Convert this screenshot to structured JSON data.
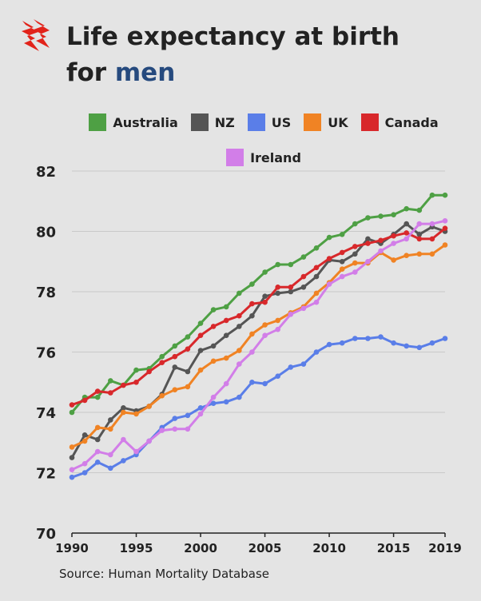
{
  "header": {
    "title_prefix": "Life expectancy at birth",
    "title_for": "for ",
    "title_accent": "men",
    "logo_icon": "sbs-logo-icon"
  },
  "source": "Source: Human Mortality Database",
  "colors": {
    "Australia": "#4ea044",
    "NZ": "#555555",
    "US": "#5a7ee8",
    "UK": "#f08324",
    "Canada": "#d8282b",
    "Ireland": "#d27ee8",
    "accent": "#264a7e",
    "logo": "#e2231a"
  },
  "chart_data": {
    "type": "line",
    "title": "Life expectancy at birth for men",
    "xlabel": "",
    "ylabel": "",
    "xlim": [
      1990,
      2019
    ],
    "ylim": [
      70,
      82
    ],
    "yticks": [
      70,
      72,
      74,
      76,
      78,
      80,
      82
    ],
    "xticks": [
      1990,
      1995,
      2000,
      2005,
      2010,
      2015,
      2019
    ],
    "grid": true,
    "legend": "top",
    "x": [
      1990,
      1991,
      1992,
      1993,
      1994,
      1995,
      1996,
      1997,
      1998,
      1999,
      2000,
      2001,
      2002,
      2003,
      2004,
      2005,
      2006,
      2007,
      2008,
      2009,
      2010,
      2011,
      2012,
      2013,
      2014,
      2015,
      2016,
      2017,
      2018,
      2019
    ],
    "series": [
      {
        "name": "Australia",
        "values": [
          74.0,
          74.5,
          74.5,
          75.05,
          74.9,
          75.4,
          75.45,
          75.85,
          76.2,
          76.5,
          76.95,
          77.4,
          77.5,
          77.95,
          78.25,
          78.65,
          78.9,
          78.9,
          79.15,
          79.45,
          79.8,
          79.9,
          80.25,
          80.45,
          80.5,
          80.55,
          80.75,
          80.7,
          81.2,
          81.2
        ]
      },
      {
        "name": "NZ",
        "values": [
          72.5,
          73.25,
          73.1,
          73.75,
          74.15,
          74.05,
          74.2,
          74.6,
          75.5,
          75.35,
          76.05,
          76.2,
          76.55,
          76.85,
          77.2,
          77.85,
          77.95,
          78.0,
          78.15,
          78.5,
          79.05,
          79.0,
          79.25,
          79.75,
          79.6,
          79.9,
          80.25,
          79.9,
          80.15,
          80.0
        ]
      },
      {
        "name": "US",
        "values": [
          71.85,
          72.0,
          72.35,
          72.15,
          72.4,
          72.6,
          73.05,
          73.5,
          73.8,
          73.9,
          74.15,
          74.3,
          74.35,
          74.5,
          75.0,
          74.95,
          75.2,
          75.5,
          75.6,
          76.0,
          76.25,
          76.3,
          76.45,
          76.45,
          76.5,
          76.3,
          76.2,
          76.15,
          76.3,
          76.45
        ]
      },
      {
        "name": "UK",
        "values": [
          72.85,
          73.05,
          73.5,
          73.45,
          74.0,
          73.95,
          74.2,
          74.55,
          74.75,
          74.85,
          75.4,
          75.7,
          75.8,
          76.05,
          76.6,
          76.9,
          77.05,
          77.3,
          77.5,
          77.95,
          78.3,
          78.75,
          78.95,
          78.95,
          79.3,
          79.05,
          79.2,
          79.25,
          79.25,
          79.55
        ]
      },
      {
        "name": "Canada",
        "values": [
          74.25,
          74.4,
          74.7,
          74.65,
          74.9,
          75.0,
          75.35,
          75.65,
          75.85,
          76.1,
          76.55,
          76.85,
          77.05,
          77.2,
          77.6,
          77.65,
          78.15,
          78.15,
          78.5,
          78.8,
          79.1,
          79.3,
          79.5,
          79.6,
          79.7,
          79.85,
          79.95,
          79.75,
          79.75,
          80.1
        ]
      },
      {
        "name": "Ireland",
        "values": [
          72.1,
          72.3,
          72.7,
          72.6,
          73.1,
          72.7,
          73.05,
          73.4,
          73.45,
          73.45,
          73.95,
          74.5,
          74.95,
          75.6,
          76.0,
          76.55,
          76.75,
          77.25,
          77.45,
          77.65,
          78.25,
          78.5,
          78.65,
          79.0,
          79.35,
          79.6,
          79.75,
          80.25,
          80.25,
          80.35
        ]
      }
    ]
  }
}
